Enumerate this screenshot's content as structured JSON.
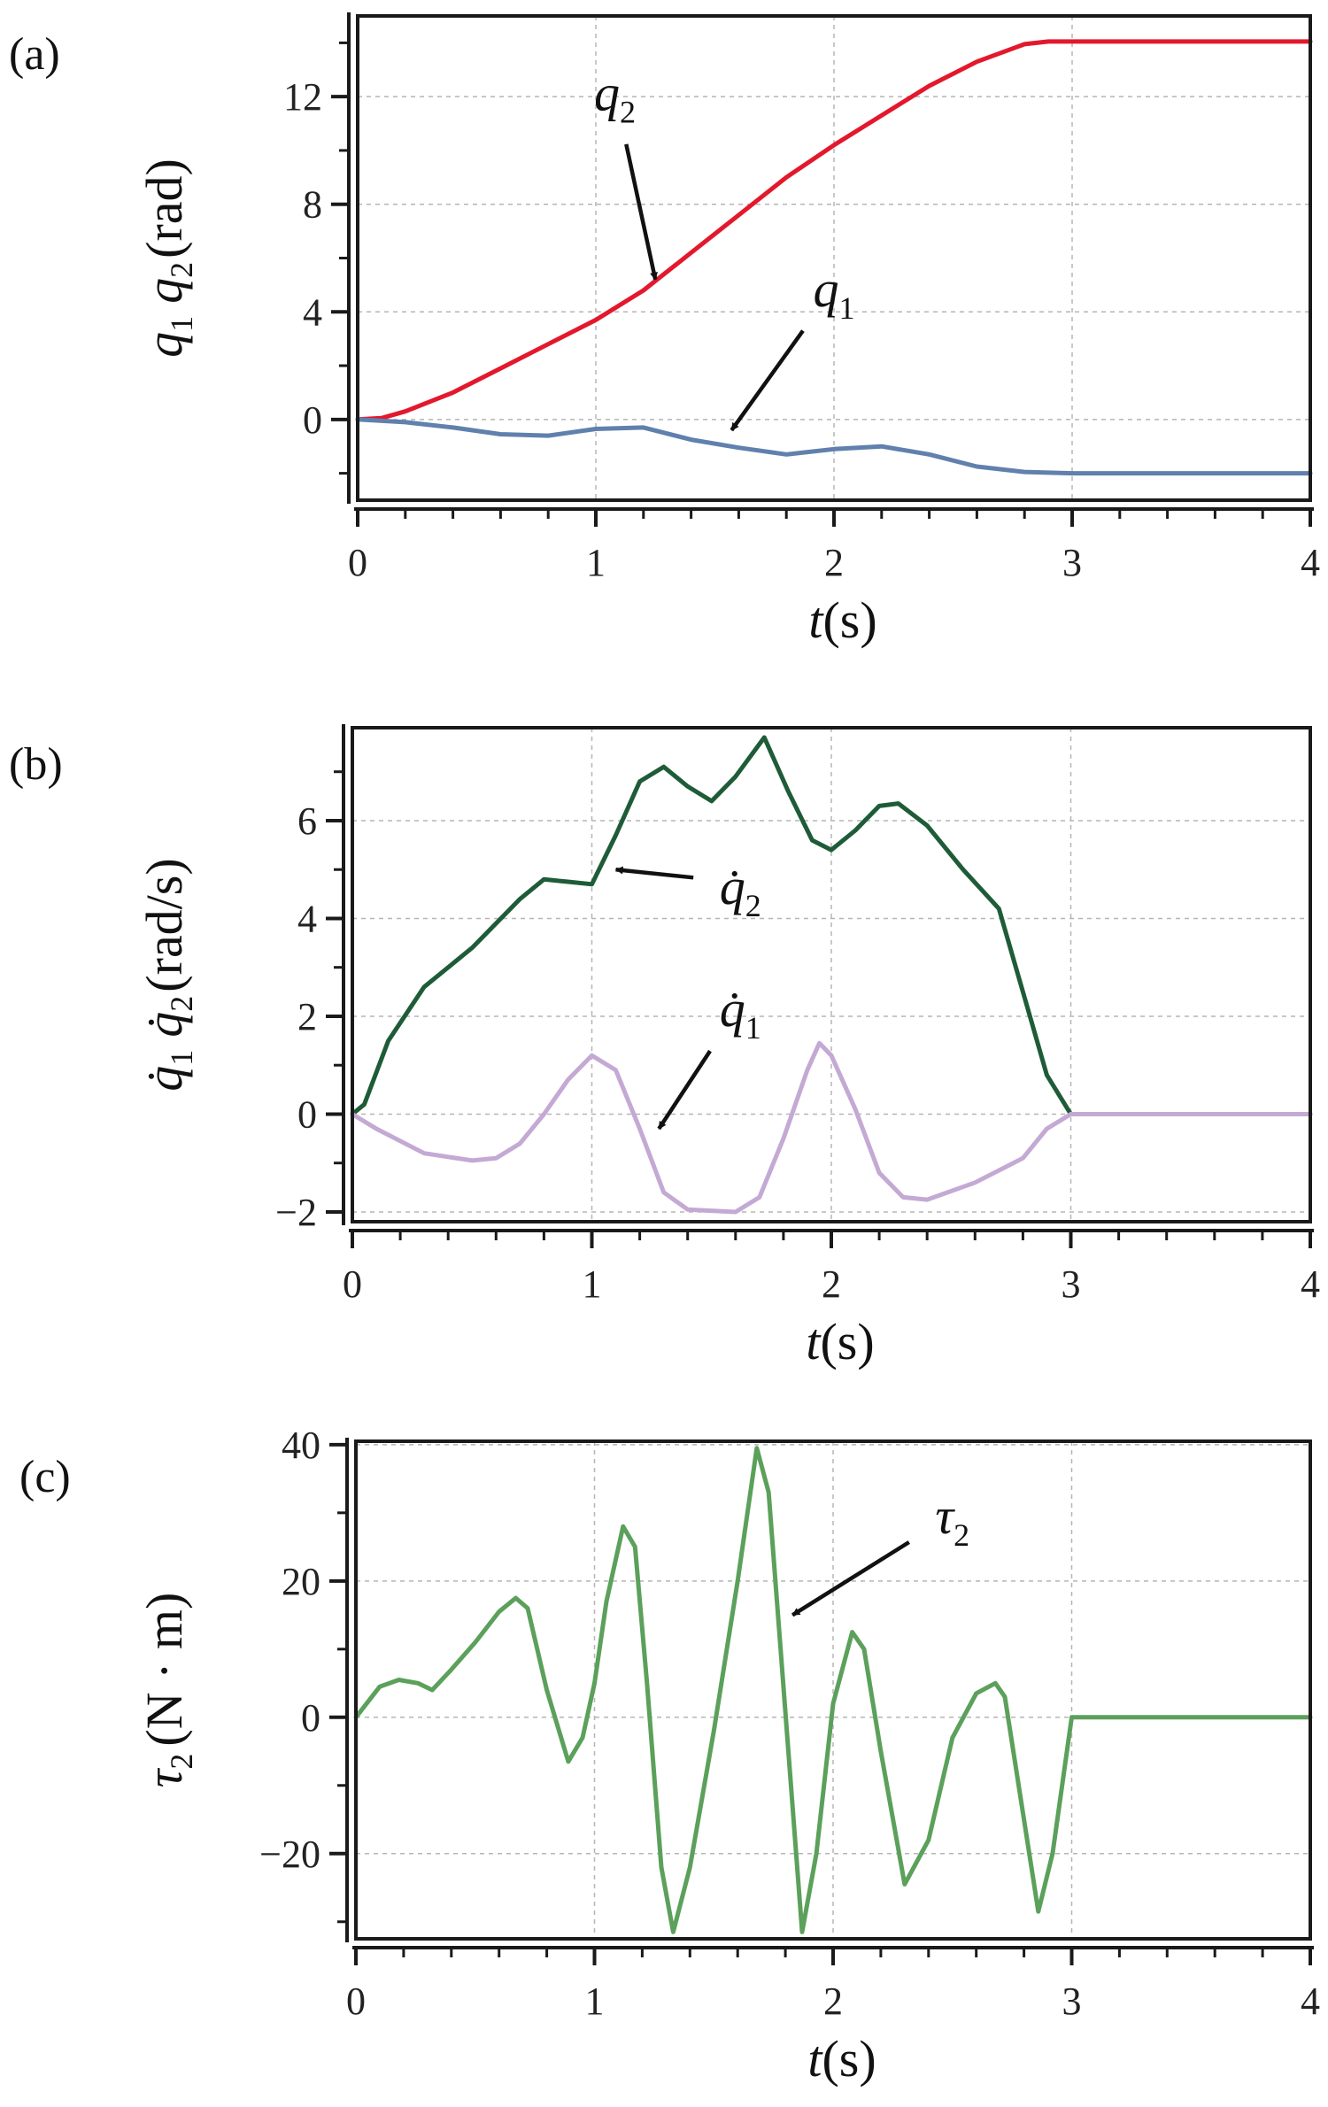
{
  "chart_data": [
    {
      "panel": "(a)",
      "type": "line",
      "xlabel_var": "t",
      "xlabel_unit": "(s)",
      "ylabel_parts": [
        "q",
        "1",
        "q",
        "2",
        "(rad)"
      ],
      "xlim": [
        0,
        4
      ],
      "ylim": [
        -3,
        15
      ],
      "xticks": [
        0,
        1,
        2,
        3,
        4
      ],
      "yticks": [
        0,
        4,
        8,
        12
      ],
      "ytick_labels": [
        "0",
        "4",
        "8",
        "12"
      ],
      "grid": true,
      "series": [
        {
          "name": "q2",
          "label_main": "q",
          "label_sub": "2",
          "color": "#e3182d",
          "x": [
            0,
            0.1,
            0.2,
            0.4,
            0.6,
            0.8,
            1.0,
            1.2,
            1.4,
            1.6,
            1.8,
            2.0,
            2.2,
            2.4,
            2.6,
            2.8,
            2.9,
            3.0,
            3.5,
            4.0
          ],
          "y": [
            0,
            0.05,
            0.3,
            1.0,
            1.9,
            2.8,
            3.7,
            4.8,
            6.2,
            7.6,
            9.0,
            10.2,
            11.3,
            12.4,
            13.3,
            13.95,
            14.05,
            14.05,
            14.05,
            14.05
          ]
        },
        {
          "name": "q1",
          "label_main": "q",
          "label_sub": "1",
          "color": "#6080ad",
          "x": [
            0,
            0.2,
            0.4,
            0.6,
            0.8,
            1.0,
            1.2,
            1.4,
            1.6,
            1.8,
            2.0,
            2.2,
            2.4,
            2.6,
            2.8,
            3.0,
            3.5,
            4.0
          ],
          "y": [
            0,
            -0.1,
            -0.3,
            -0.55,
            -0.6,
            -0.35,
            -0.3,
            -0.75,
            -1.05,
            -1.3,
            -1.1,
            -1.0,
            -1.3,
            -1.75,
            -1.95,
            -2.0,
            -2.0,
            -2.0
          ]
        }
      ],
      "annotations": [
        {
          "series": "q2",
          "text_x": 1.08,
          "text_y": 11.5,
          "arrow_to": [
            1.25,
            5.2
          ]
        },
        {
          "series": "q1",
          "text_x": 2.0,
          "text_y": 4.2,
          "arrow_to": [
            1.57,
            -0.4
          ]
        }
      ]
    },
    {
      "panel": "(b)",
      "type": "line",
      "xlabel_var": "t",
      "xlabel_unit": "(s)",
      "ylabel_parts": [
        "q̇",
        "1",
        "q̇",
        "2",
        "(rad/s)"
      ],
      "xlim": [
        0,
        4
      ],
      "ylim": [
        -2.2,
        7.9
      ],
      "xticks": [
        0,
        1,
        2,
        3,
        4
      ],
      "yticks": [
        -2,
        0,
        2,
        4,
        6
      ],
      "ytick_labels": [
        "−2",
        "0",
        "2",
        "4",
        "6"
      ],
      "grid": true,
      "series": [
        {
          "name": "q2dot",
          "label_main": "q̇",
          "label_sub": "2",
          "color": "#1e5c38",
          "x": [
            0,
            0.05,
            0.15,
            0.3,
            0.5,
            0.7,
            0.8,
            0.9,
            1.0,
            1.1,
            1.2,
            1.3,
            1.4,
            1.5,
            1.6,
            1.72,
            1.82,
            1.92,
            2.0,
            2.1,
            2.2,
            2.28,
            2.4,
            2.55,
            2.7,
            2.8,
            2.9,
            3.0,
            3.5,
            4.0
          ],
          "y": [
            0,
            0.2,
            1.5,
            2.6,
            3.4,
            4.4,
            4.8,
            4.75,
            4.7,
            5.7,
            6.8,
            7.1,
            6.7,
            6.4,
            6.9,
            7.7,
            6.6,
            5.6,
            5.4,
            5.8,
            6.3,
            6.35,
            5.9,
            5.0,
            4.2,
            2.5,
            0.8,
            0,
            0,
            0
          ]
        },
        {
          "name": "q1dot",
          "label_main": "q̇",
          "label_sub": "1",
          "color": "#c4a9d4",
          "x": [
            0,
            0.1,
            0.3,
            0.5,
            0.6,
            0.7,
            0.8,
            0.9,
            1.0,
            1.1,
            1.2,
            1.3,
            1.4,
            1.6,
            1.7,
            1.8,
            1.9,
            1.95,
            2.0,
            2.1,
            2.2,
            2.3,
            2.4,
            2.6,
            2.8,
            2.9,
            3.0,
            3.5,
            4.0
          ],
          "y": [
            0,
            -0.3,
            -0.8,
            -0.95,
            -0.9,
            -0.6,
            0.0,
            0.7,
            1.2,
            0.9,
            -0.3,
            -1.6,
            -1.95,
            -2.0,
            -1.7,
            -0.5,
            0.9,
            1.45,
            1.2,
            0.1,
            -1.2,
            -1.7,
            -1.75,
            -1.4,
            -0.9,
            -0.3,
            0,
            0,
            0
          ]
        }
      ],
      "annotations": [
        {
          "series": "q2dot",
          "text_x": 1.62,
          "text_y": 4.3,
          "arrow_to": [
            1.1,
            5.0
          ]
        },
        {
          "series": "q1dot",
          "text_x": 1.62,
          "text_y": 1.8,
          "arrow_to": [
            1.28,
            -0.3
          ]
        }
      ]
    },
    {
      "panel": "(c)",
      "type": "line",
      "xlabel_var": "t",
      "xlabel_unit": "(s)",
      "ylabel_parts": [
        "τ",
        "2",
        "",
        "",
        "(N · m)"
      ],
      "xlim": [
        0,
        4
      ],
      "ylim": [
        -32.5,
        40.5
      ],
      "xticks": [
        0,
        1,
        2,
        3,
        4
      ],
      "yticks": [
        -20,
        0,
        20,
        40
      ],
      "ytick_labels": [
        "−20",
        "0",
        "20",
        "40"
      ],
      "grid": true,
      "series": [
        {
          "name": "tau2",
          "label_main": "τ",
          "label_sub": "2",
          "color": "#5ba05b",
          "x": [
            0,
            0.1,
            0.18,
            0.26,
            0.32,
            0.4,
            0.5,
            0.6,
            0.67,
            0.72,
            0.8,
            0.89,
            0.95,
            1.0,
            1.05,
            1.12,
            1.17,
            1.22,
            1.28,
            1.33,
            1.4,
            1.5,
            1.6,
            1.68,
            1.73,
            1.78,
            1.87,
            1.93,
            2.0,
            2.08,
            2.13,
            2.2,
            2.3,
            2.4,
            2.5,
            2.6,
            2.68,
            2.72,
            2.8,
            2.86,
            2.92,
            2.98,
            3.0,
            3.5,
            4.0
          ],
          "y": [
            0,
            4.5,
            5.5,
            5.0,
            4.0,
            7.0,
            11.0,
            15.5,
            17.5,
            16.0,
            4.0,
            -6.5,
            -3.0,
            5.0,
            17.0,
            28.0,
            25.0,
            5.0,
            -22.0,
            -31.5,
            -22.0,
            -2.0,
            20.0,
            39.5,
            33.0,
            10.0,
            -31.5,
            -20.0,
            2.0,
            12.5,
            10.0,
            -5.0,
            -24.5,
            -18.0,
            -3.0,
            3.5,
            5.0,
            3.0,
            -15.0,
            -28.5,
            -20.0,
            -5.0,
            0,
            0,
            0
          ]
        }
      ],
      "annotations": [
        {
          "series": "tau2",
          "text_x": 2.5,
          "text_y": 27,
          "arrow_to": [
            1.83,
            15.0
          ]
        }
      ]
    }
  ]
}
